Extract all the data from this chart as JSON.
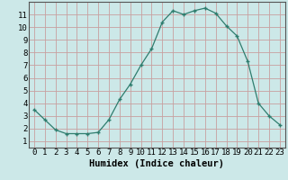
{
  "x": [
    0,
    1,
    2,
    3,
    4,
    5,
    6,
    7,
    8,
    9,
    10,
    11,
    12,
    13,
    14,
    15,
    16,
    17,
    18,
    19,
    20,
    21,
    22,
    23
  ],
  "y": [
    3.5,
    2.7,
    1.9,
    1.6,
    1.6,
    1.6,
    1.7,
    2.7,
    4.3,
    5.5,
    7.0,
    8.3,
    10.4,
    11.3,
    11.0,
    11.3,
    11.5,
    11.1,
    10.1,
    9.3,
    7.3,
    4.0,
    3.0,
    2.3
  ],
  "line_color": "#2e7d6e",
  "marker": "+",
  "bg_color": "#cce8e8",
  "grid_color": "#c8a0a0",
  "xlabel": "Humidex (Indice chaleur)",
  "xlim": [
    -0.5,
    23.5
  ],
  "ylim": [
    0.5,
    12.0
  ],
  "yticks": [
    1,
    2,
    3,
    4,
    5,
    6,
    7,
    8,
    9,
    10,
    11
  ],
  "xticks": [
    0,
    1,
    2,
    3,
    4,
    5,
    6,
    7,
    8,
    9,
    10,
    11,
    12,
    13,
    14,
    15,
    16,
    17,
    18,
    19,
    20,
    21,
    22,
    23
  ],
  "tick_font_size": 6.5,
  "label_font_size": 7.5
}
